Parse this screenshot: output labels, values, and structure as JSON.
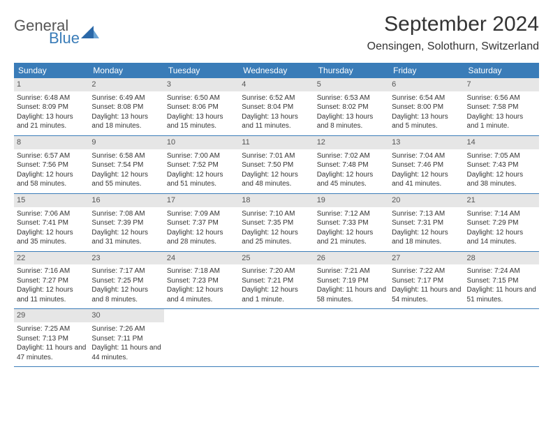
{
  "logo": {
    "text1": "General",
    "text2": "Blue"
  },
  "title": "September 2024",
  "location": "Oensingen, Solothurn, Switzerland",
  "colors": {
    "header_bg": "#3a7cb8",
    "daynum_bg": "#e6e6e6",
    "border": "#3a7cb8",
    "text": "#333333",
    "logo_accent": "#2a68a8"
  },
  "weekdays": [
    "Sunday",
    "Monday",
    "Tuesday",
    "Wednesday",
    "Thursday",
    "Friday",
    "Saturday"
  ],
  "weeks": [
    [
      {
        "n": "1",
        "sr": "Sunrise: 6:48 AM",
        "ss": "Sunset: 8:09 PM",
        "dl": "Daylight: 13 hours and 21 minutes."
      },
      {
        "n": "2",
        "sr": "Sunrise: 6:49 AM",
        "ss": "Sunset: 8:08 PM",
        "dl": "Daylight: 13 hours and 18 minutes."
      },
      {
        "n": "3",
        "sr": "Sunrise: 6:50 AM",
        "ss": "Sunset: 8:06 PM",
        "dl": "Daylight: 13 hours and 15 minutes."
      },
      {
        "n": "4",
        "sr": "Sunrise: 6:52 AM",
        "ss": "Sunset: 8:04 PM",
        "dl": "Daylight: 13 hours and 11 minutes."
      },
      {
        "n": "5",
        "sr": "Sunrise: 6:53 AM",
        "ss": "Sunset: 8:02 PM",
        "dl": "Daylight: 13 hours and 8 minutes."
      },
      {
        "n": "6",
        "sr": "Sunrise: 6:54 AM",
        "ss": "Sunset: 8:00 PM",
        "dl": "Daylight: 13 hours and 5 minutes."
      },
      {
        "n": "7",
        "sr": "Sunrise: 6:56 AM",
        "ss": "Sunset: 7:58 PM",
        "dl": "Daylight: 13 hours and 1 minute."
      }
    ],
    [
      {
        "n": "8",
        "sr": "Sunrise: 6:57 AM",
        "ss": "Sunset: 7:56 PM",
        "dl": "Daylight: 12 hours and 58 minutes."
      },
      {
        "n": "9",
        "sr": "Sunrise: 6:58 AM",
        "ss": "Sunset: 7:54 PM",
        "dl": "Daylight: 12 hours and 55 minutes."
      },
      {
        "n": "10",
        "sr": "Sunrise: 7:00 AM",
        "ss": "Sunset: 7:52 PM",
        "dl": "Daylight: 12 hours and 51 minutes."
      },
      {
        "n": "11",
        "sr": "Sunrise: 7:01 AM",
        "ss": "Sunset: 7:50 PM",
        "dl": "Daylight: 12 hours and 48 minutes."
      },
      {
        "n": "12",
        "sr": "Sunrise: 7:02 AM",
        "ss": "Sunset: 7:48 PM",
        "dl": "Daylight: 12 hours and 45 minutes."
      },
      {
        "n": "13",
        "sr": "Sunrise: 7:04 AM",
        "ss": "Sunset: 7:46 PM",
        "dl": "Daylight: 12 hours and 41 minutes."
      },
      {
        "n": "14",
        "sr": "Sunrise: 7:05 AM",
        "ss": "Sunset: 7:43 PM",
        "dl": "Daylight: 12 hours and 38 minutes."
      }
    ],
    [
      {
        "n": "15",
        "sr": "Sunrise: 7:06 AM",
        "ss": "Sunset: 7:41 PM",
        "dl": "Daylight: 12 hours and 35 minutes."
      },
      {
        "n": "16",
        "sr": "Sunrise: 7:08 AM",
        "ss": "Sunset: 7:39 PM",
        "dl": "Daylight: 12 hours and 31 minutes."
      },
      {
        "n": "17",
        "sr": "Sunrise: 7:09 AM",
        "ss": "Sunset: 7:37 PM",
        "dl": "Daylight: 12 hours and 28 minutes."
      },
      {
        "n": "18",
        "sr": "Sunrise: 7:10 AM",
        "ss": "Sunset: 7:35 PM",
        "dl": "Daylight: 12 hours and 25 minutes."
      },
      {
        "n": "19",
        "sr": "Sunrise: 7:12 AM",
        "ss": "Sunset: 7:33 PM",
        "dl": "Daylight: 12 hours and 21 minutes."
      },
      {
        "n": "20",
        "sr": "Sunrise: 7:13 AM",
        "ss": "Sunset: 7:31 PM",
        "dl": "Daylight: 12 hours and 18 minutes."
      },
      {
        "n": "21",
        "sr": "Sunrise: 7:14 AM",
        "ss": "Sunset: 7:29 PM",
        "dl": "Daylight: 12 hours and 14 minutes."
      }
    ],
    [
      {
        "n": "22",
        "sr": "Sunrise: 7:16 AM",
        "ss": "Sunset: 7:27 PM",
        "dl": "Daylight: 12 hours and 11 minutes."
      },
      {
        "n": "23",
        "sr": "Sunrise: 7:17 AM",
        "ss": "Sunset: 7:25 PM",
        "dl": "Daylight: 12 hours and 8 minutes."
      },
      {
        "n": "24",
        "sr": "Sunrise: 7:18 AM",
        "ss": "Sunset: 7:23 PM",
        "dl": "Daylight: 12 hours and 4 minutes."
      },
      {
        "n": "25",
        "sr": "Sunrise: 7:20 AM",
        "ss": "Sunset: 7:21 PM",
        "dl": "Daylight: 12 hours and 1 minute."
      },
      {
        "n": "26",
        "sr": "Sunrise: 7:21 AM",
        "ss": "Sunset: 7:19 PM",
        "dl": "Daylight: 11 hours and 58 minutes."
      },
      {
        "n": "27",
        "sr": "Sunrise: 7:22 AM",
        "ss": "Sunset: 7:17 PM",
        "dl": "Daylight: 11 hours and 54 minutes."
      },
      {
        "n": "28",
        "sr": "Sunrise: 7:24 AM",
        "ss": "Sunset: 7:15 PM",
        "dl": "Daylight: 11 hours and 51 minutes."
      }
    ],
    [
      {
        "n": "29",
        "sr": "Sunrise: 7:25 AM",
        "ss": "Sunset: 7:13 PM",
        "dl": "Daylight: 11 hours and 47 minutes."
      },
      {
        "n": "30",
        "sr": "Sunrise: 7:26 AM",
        "ss": "Sunset: 7:11 PM",
        "dl": "Daylight: 11 hours and 44 minutes."
      },
      null,
      null,
      null,
      null,
      null
    ]
  ]
}
